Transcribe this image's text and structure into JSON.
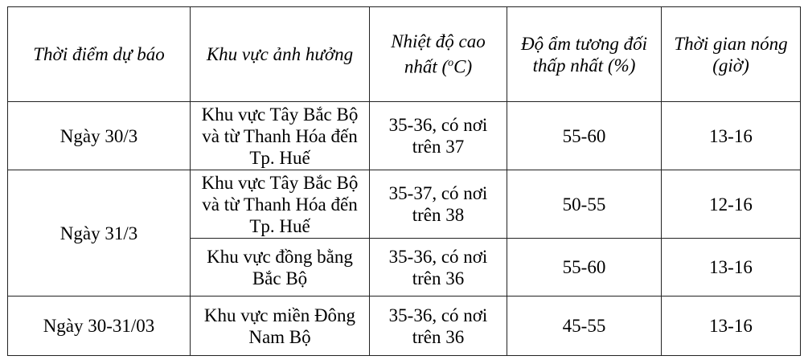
{
  "headers": [
    "Thời điểm dự báo",
    "Khu vực ảnh hưởng",
    "Nhiệt độ cao nhất (oC)",
    "Độ ẩm tương đối thấp nhất (%)",
    "Thời gian nóng (giờ)"
  ],
  "rows": [
    {
      "date": "Ngày 30/3",
      "area": "Khu vực Tây Bắc Bộ và từ Thanh Hóa đến Tp. Huế",
      "temp": "35-36, có nơi trên 37",
      "humidity": "55-60",
      "hours": "13-16"
    },
    {
      "date": "Ngày 31/3",
      "area": "Khu vực Tây Bắc Bộ và từ Thanh Hóa đến Tp. Huế",
      "temp": "35-37, có nơi trên 38",
      "humidity": "50-55",
      "hours": "12-16"
    },
    {
      "area": "Khu vực đồng bằng Bắc Bộ",
      "temp": "35-36, có nơi trên 36",
      "humidity": "55-60",
      "hours": "13-16"
    },
    {
      "date": "Ngày 30-31/03",
      "area": "Khu vực miền Đông Nam Bộ",
      "temp": "35-36, có nơi trên 36",
      "humidity": "45-55",
      "hours": "13-16"
    }
  ]
}
